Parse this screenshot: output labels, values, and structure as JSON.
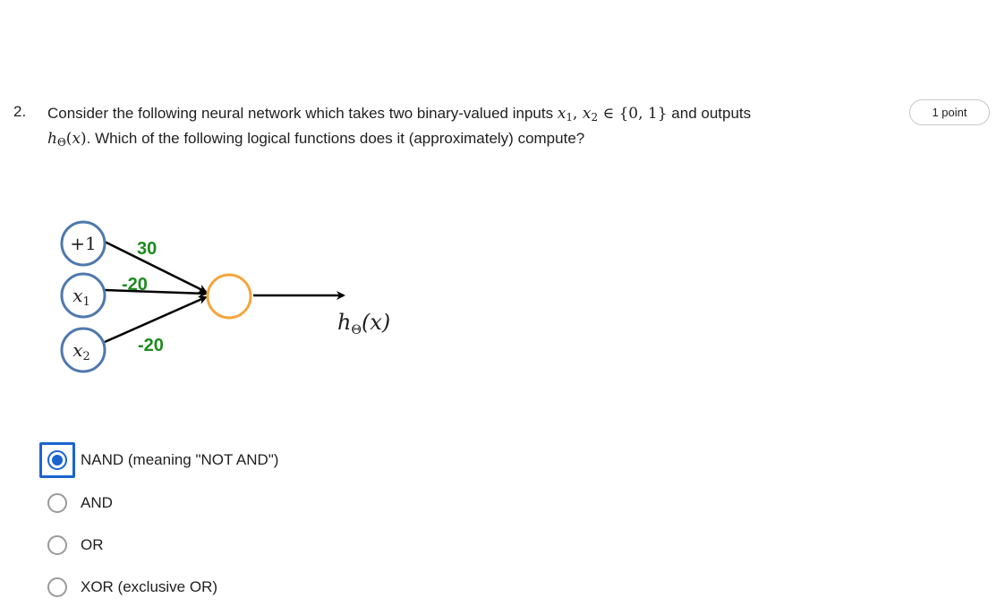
{
  "question": {
    "number": "2.",
    "text_part1": "Consider the following neural network which takes two binary-valued inputs ",
    "text_part2": " and outputs ",
    "text_part3": ". Which of the following logical functions does it (approximately) compute?",
    "points_badge": "1 point"
  },
  "diagram": {
    "bias_node_label": "+1",
    "input_node_1_label": "x",
    "input_node_1_sub": "1",
    "input_node_2_label": "x",
    "input_node_2_sub": "2",
    "weight_bias": "30",
    "weight_x1": "-20",
    "weight_x2": "-20",
    "output_label": "h",
    "output_label_sub": "Θ",
    "output_label_arg": "(x)",
    "colors": {
      "input_node_stroke": "#4f79ad",
      "output_node_stroke": "#f5a53c",
      "weight_text": "#1d8a1d",
      "edge": "#000000"
    }
  },
  "options": [
    {
      "label": "NAND (meaning \"NOT AND\")",
      "selected": true
    },
    {
      "label": "AND",
      "selected": false
    },
    {
      "label": "OR",
      "selected": false
    },
    {
      "label": "XOR (exclusive OR)",
      "selected": false
    }
  ],
  "accent_color": "#1a64d0"
}
